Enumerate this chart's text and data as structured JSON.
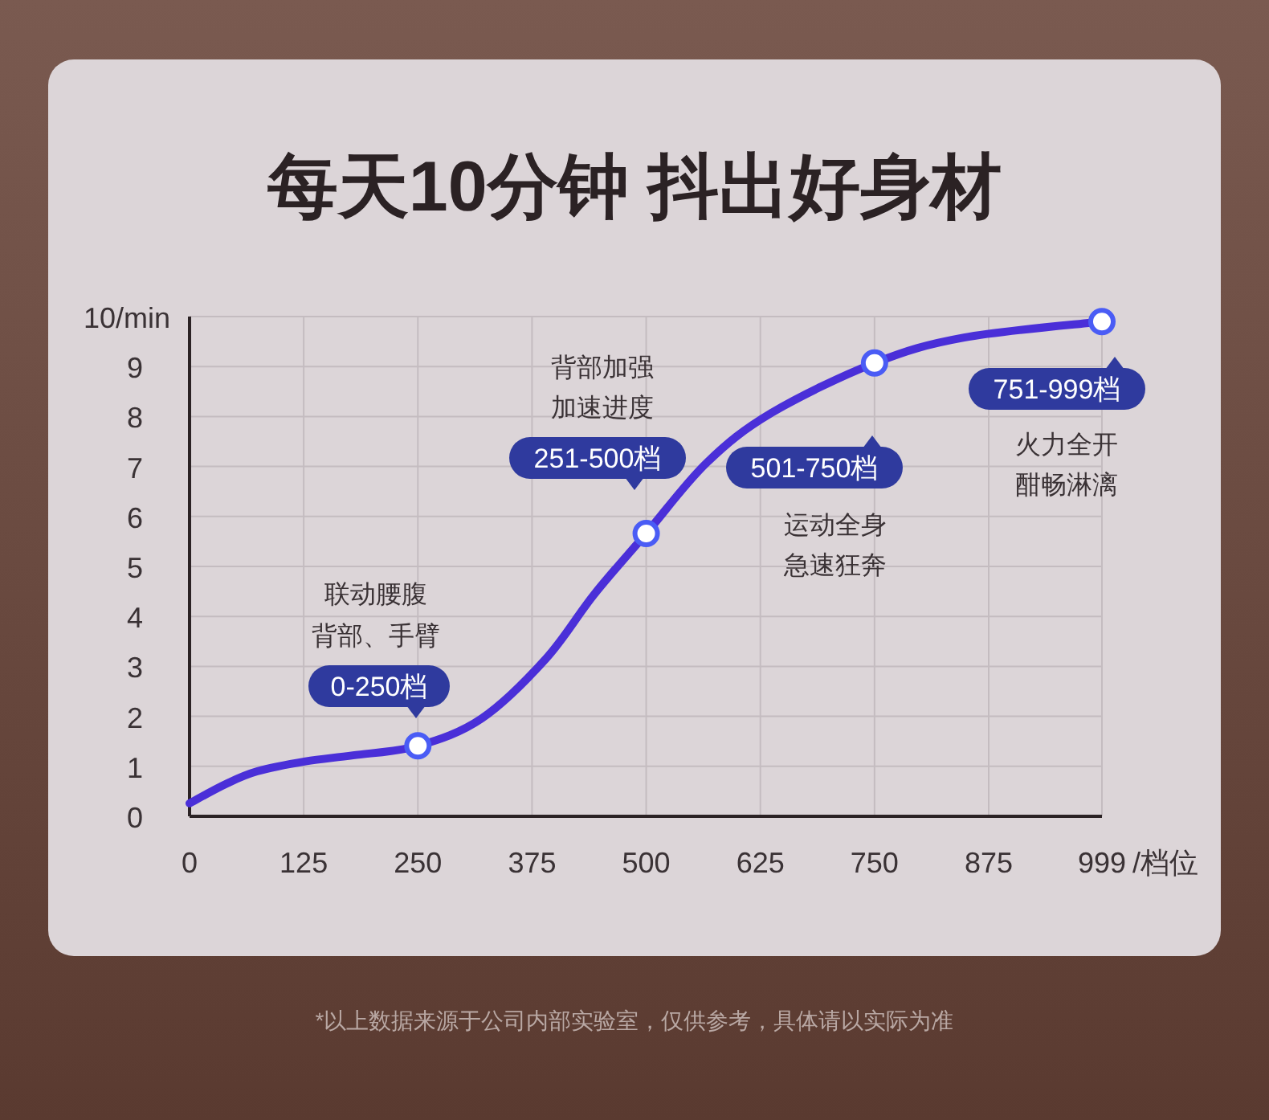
{
  "chart_data": {
    "type": "line",
    "title": "每天10分钟 抖出好身材",
    "xlabel": "/档位",
    "xlim": [
      0,
      999
    ],
    "xticks": [
      0,
      125,
      250,
      375,
      500,
      625,
      750,
      875,
      999
    ],
    "ylim": [
      0,
      10
    ],
    "yticks": [
      0,
      1,
      2,
      3,
      4,
      5,
      6,
      7,
      8,
      9,
      {
        "value": 10,
        "label": "10/min"
      }
    ],
    "grid": true,
    "line_style": "solid",
    "series": [
      {
        "type": "line",
        "color": "#4a2fd8",
        "marker": "none",
        "x": [
          0,
          39,
          74,
          127,
          179,
          250,
          320,
          390,
          443,
          500,
          566,
          637,
          750,
          848,
          999
        ],
        "values": [
          0.26,
          0.64,
          0.9,
          1.1,
          1.22,
          1.41,
          1.96,
          3.15,
          4.44,
          5.66,
          7.07,
          8.07,
          9.07,
          9.58,
          9.9
        ]
      },
      {
        "type": "scatter",
        "color": "#4a5cf5",
        "marker": "circle",
        "x": [
          250,
          500,
          750,
          999
        ],
        "values": [
          1.41,
          5.66,
          9.07,
          9.9
        ]
      }
    ],
    "annotations": [
      "0-250档",
      "251-500档",
      "501-750档",
      "751-999档",
      "联动腰腹",
      "背部、手臂",
      "背部加强",
      "加速进度",
      "运动全身",
      "急速狂奔",
      "火力全开",
      "酣畅淋漓",
      "*以上数据来源于公司内部实验室，仅供参考，具体请以实际为准"
    ]
  }
}
